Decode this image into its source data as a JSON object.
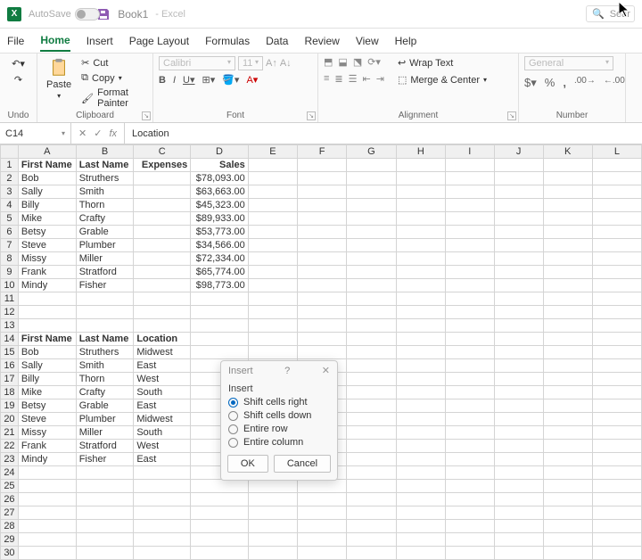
{
  "titlebar": {
    "autosave_label": "AutoSave",
    "autosave_state": "Off",
    "doc_name": "Book1",
    "app_name": "Excel",
    "search_placeholder": "Sear"
  },
  "tabs": {
    "items": [
      "File",
      "Home",
      "Insert",
      "Page Layout",
      "Formulas",
      "Data",
      "Review",
      "View",
      "Help"
    ],
    "active_index": 1
  },
  "ribbon": {
    "undo_label": "Undo",
    "clipboard": {
      "paste": "Paste",
      "cut": "Cut",
      "copy": "Copy",
      "format_painter": "Format Painter",
      "group": "Clipboard"
    },
    "font": {
      "family": "Calibri",
      "size": "11",
      "group": "Font"
    },
    "alignment": {
      "wrap": "Wrap Text",
      "merge": "Merge & Center",
      "group": "Alignment"
    },
    "number": {
      "format": "General",
      "group": "Number"
    }
  },
  "formula_bar": {
    "cell_ref": "C14",
    "value": "Location"
  },
  "columns": [
    "A",
    "B",
    "C",
    "D",
    "E",
    "F",
    "G",
    "H",
    "I",
    "J",
    "K",
    "L"
  ],
  "rows": [
    {
      "n": 1,
      "A": "First Name",
      "B": "Last Name",
      "C": "Expenses",
      "D": "Sales",
      "bold": true,
      "D_right": true
    },
    {
      "n": 2,
      "A": "Bob",
      "B": "Struthers",
      "C": "",
      "D": "$78,093.00",
      "D_right": true
    },
    {
      "n": 3,
      "A": "Sally",
      "B": "Smith",
      "C": "",
      "D": "$63,663.00",
      "D_right": true
    },
    {
      "n": 4,
      "A": "Billy",
      "B": "Thorn",
      "C": "",
      "D": "$45,323.00",
      "D_right": true
    },
    {
      "n": 5,
      "A": "Mike",
      "B": "Crafty",
      "C": "",
      "D": "$89,933.00",
      "D_right": true
    },
    {
      "n": 6,
      "A": "Betsy",
      "B": "Grable",
      "C": "",
      "D": "$53,773.00",
      "D_right": true
    },
    {
      "n": 7,
      "A": "Steve",
      "B": "Plumber",
      "C": "",
      "D": "$34,566.00",
      "D_right": true
    },
    {
      "n": 8,
      "A": "Missy",
      "B": "Miller",
      "C": "",
      "D": "$72,334.00",
      "D_right": true
    },
    {
      "n": 9,
      "A": "Frank",
      "B": "Stratford",
      "C": "",
      "D": "$65,774.00",
      "D_right": true
    },
    {
      "n": 10,
      "A": "Mindy",
      "B": "Fisher",
      "C": "",
      "D": "$98,773.00",
      "D_right": true
    },
    {
      "n": 11
    },
    {
      "n": 12
    },
    {
      "n": 13
    },
    {
      "n": 14,
      "A": "First Name",
      "B": "Last Name",
      "C": "Location",
      "bold": true
    },
    {
      "n": 15,
      "A": "Bob",
      "B": "Struthers",
      "C": "Midwest"
    },
    {
      "n": 16,
      "A": "Sally",
      "B": "Smith",
      "C": "East"
    },
    {
      "n": 17,
      "A": "Billy",
      "B": "Thorn",
      "C": "West"
    },
    {
      "n": 18,
      "A": "Mike",
      "B": "Crafty",
      "C": "South"
    },
    {
      "n": 19,
      "A": "Betsy",
      "B": "Grable",
      "C": "East"
    },
    {
      "n": 20,
      "A": "Steve",
      "B": "Plumber",
      "C": "Midwest"
    },
    {
      "n": 21,
      "A": "Missy",
      "B": "Miller",
      "C": "South"
    },
    {
      "n": 22,
      "A": "Frank",
      "B": "Stratford",
      "C": "West"
    },
    {
      "n": 23,
      "A": "Mindy",
      "B": "Fisher",
      "C": "East"
    },
    {
      "n": 24
    },
    {
      "n": 25
    },
    {
      "n": 26
    },
    {
      "n": 27
    },
    {
      "n": 28
    },
    {
      "n": 29
    },
    {
      "n": 30
    }
  ],
  "dialog": {
    "title": "Insert",
    "label": "Insert",
    "options": [
      "Shift cells right",
      "Shift cells down",
      "Entire row",
      "Entire column"
    ],
    "selected_index": 0,
    "ok": "OK",
    "cancel": "Cancel"
  }
}
